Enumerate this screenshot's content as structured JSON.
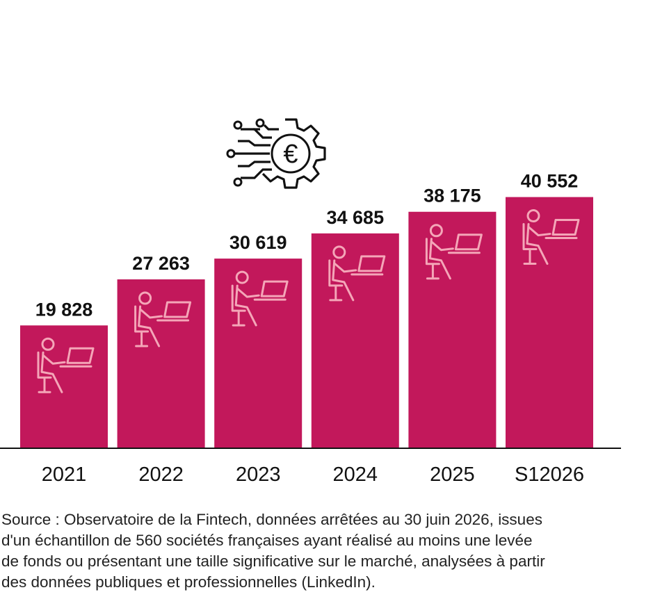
{
  "chart_data": {
    "type": "bar",
    "categories": [
      "2021",
      "2022",
      "2023",
      "2024",
      "2025",
      "S12026"
    ],
    "values": [
      19828,
      27263,
      30619,
      34685,
      38175,
      40552
    ],
    "value_labels": [
      "19 828",
      "27 263",
      "30 619",
      "34 685",
      "38 175",
      "40 552"
    ],
    "title": "",
    "xlabel": "",
    "ylabel": "",
    "ylim": [
      0,
      46000
    ],
    "grid": false,
    "legend": "none"
  },
  "colors": {
    "bar": "#C2185B",
    "icon": "#F4A6B8",
    "axis": "#111111",
    "text": "#111111"
  },
  "icons": {
    "bar_icon": "person-at-laptop-icon",
    "header_icon": "gear-euro-circuit-icon",
    "header_symbol": "€"
  },
  "source": "Source : Observatoire de la Fintech, données arrêtées au 30 juin 2026, issues\nd'un échantillon de 560 sociétés françaises ayant réalisé au moins une levée\nde fonds ou présentant une taille significative sur le marché, analysées à partir\ndes données publiques et professionnelles (LinkedIn)."
}
